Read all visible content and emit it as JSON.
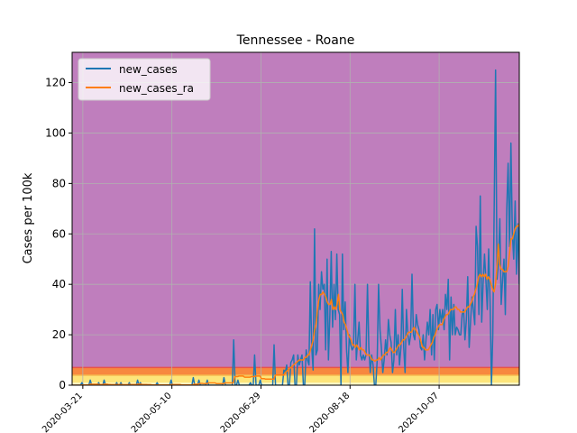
{
  "chart_data": {
    "type": "line",
    "title": "Tennessee - Roane",
    "xlabel": "",
    "ylabel": "Cases per 100k",
    "x_start": "2020-03-15",
    "x_end": "2020-11-21",
    "xlim": [
      "2020-03-15",
      "2020-11-21"
    ],
    "ylim": [
      0,
      132
    ],
    "x_ticks": [
      "2020-03-21",
      "2020-05-10",
      "2020-06-29",
      "2020-08-18",
      "2020-10-07"
    ],
    "y_ticks": [
      0,
      20,
      40,
      60,
      80,
      100,
      120
    ],
    "grid": true,
    "legend_position": "top-left",
    "background_bands": [
      {
        "from": 0,
        "to": 1,
        "color": "#fff8c4"
      },
      {
        "from": 1,
        "to": 4,
        "color": "#fde57a"
      },
      {
        "from": 4,
        "to": 7,
        "color": "#f7883f"
      },
      {
        "from": 7,
        "to": 132,
        "color": "#bf7ebd"
      }
    ],
    "band_edge_lines": [
      {
        "y": 4,
        "color": "#f6b44a"
      },
      {
        "y": 7,
        "color": "#e8534a"
      }
    ],
    "series": [
      {
        "name": "new_cases",
        "color": "#1f77b4",
        "values": [
          0,
          0,
          0,
          0,
          0,
          0,
          0,
          1,
          0,
          0,
          0,
          0,
          0,
          2,
          0,
          0,
          0,
          0,
          0,
          1,
          0,
          0,
          0,
          2,
          0,
          0,
          0,
          0,
          0,
          0,
          0,
          0,
          1,
          0,
          0,
          1,
          0,
          0,
          0,
          0,
          0,
          1,
          0,
          0,
          0,
          0,
          0,
          2,
          0,
          1,
          0,
          0,
          0,
          0,
          0,
          0,
          0,
          0,
          0,
          0,
          0,
          1,
          0,
          0,
          0,
          0,
          0,
          0,
          0,
          0,
          0,
          2,
          0,
          0,
          0,
          0,
          0,
          0,
          0,
          0,
          0,
          0,
          0,
          0,
          0,
          0,
          0,
          3,
          0,
          0,
          0,
          2,
          0,
          0,
          0,
          0,
          0,
          2,
          0,
          0,
          0,
          0,
          0,
          0,
          0,
          0,
          0,
          0,
          0,
          3,
          0,
          0,
          0,
          0,
          0,
          0,
          18,
          0,
          0,
          2,
          0,
          0,
          0,
          0,
          0,
          0,
          0,
          0,
          1,
          0,
          0,
          12,
          0,
          0,
          0,
          2,
          0,
          0,
          0,
          0,
          0,
          0,
          0,
          0,
          0,
          16,
          0,
          0,
          0,
          0,
          0,
          0,
          6,
          5,
          8,
          0,
          0,
          9,
          10,
          12,
          0,
          0,
          12,
          8,
          10,
          12,
          0,
          0,
          14,
          10,
          8,
          41,
          15,
          6,
          62,
          12,
          14,
          40,
          30,
          45,
          38,
          40,
          14,
          50,
          10,
          28,
          53,
          23,
          40,
          26,
          52,
          30,
          28,
          0,
          52,
          22,
          33,
          14,
          5,
          20,
          16,
          14,
          15,
          40,
          10,
          18,
          25,
          12,
          10,
          12,
          10,
          12,
          40,
          15,
          5,
          12,
          8,
          0,
          0,
          10,
          40,
          22,
          15,
          5,
          10,
          18,
          12,
          26,
          20,
          17,
          5,
          10,
          30,
          12,
          20,
          8,
          15,
          38,
          15,
          5,
          30,
          20,
          16,
          20,
          44,
          20,
          18,
          28,
          24,
          22,
          15,
          14,
          20,
          10,
          18,
          25,
          20,
          30,
          12,
          28,
          10,
          30,
          32,
          22,
          30,
          25,
          30,
          22,
          36,
          30,
          42,
          10,
          35,
          20,
          32,
          20,
          23,
          22,
          20,
          20,
          28,
          30,
          18,
          26,
          43,
          15,
          25,
          35,
          30,
          24,
          63,
          55,
          28,
          75,
          25,
          40,
          52,
          42,
          30,
          54,
          33,
          0,
          20,
          72,
          125,
          42,
          48,
          66,
          32,
          42,
          50,
          28,
          70,
          88,
          55,
          96,
          60,
          50,
          73,
          44,
          64,
          40
        ]
      },
      {
        "name": "new_cases_ra",
        "color": "#ff7f0e",
        "values": [
          0,
          0,
          0,
          0,
          0,
          0,
          0,
          0.1,
          0.1,
          0.1,
          0.1,
          0.1,
          0.1,
          0.4,
          0.4,
          0.4,
          0.4,
          0.4,
          0.4,
          0.3,
          0.3,
          0.3,
          0.3,
          0.4,
          0.4,
          0.4,
          0.3,
          0.3,
          0.2,
          0.2,
          0.2,
          0.2,
          0.3,
          0.3,
          0.3,
          0.2,
          0.2,
          0.2,
          0.2,
          0.2,
          0.2,
          0.3,
          0.3,
          0.3,
          0.3,
          0.3,
          0.3,
          0.4,
          0.4,
          0.4,
          0.3,
          0.3,
          0.3,
          0.3,
          0.2,
          0.2,
          0.2,
          0.1,
          0.1,
          0.1,
          0.1,
          0.1,
          0.1,
          0.1,
          0.1,
          0.1,
          0.1,
          0.1,
          0.1,
          0.1,
          0.1,
          0.3,
          0.3,
          0.3,
          0.3,
          0.3,
          0.3,
          0.3,
          0.1,
          0.1,
          0.1,
          0.1,
          0.1,
          0.1,
          0.1,
          0.1,
          0.1,
          0.4,
          0.4,
          0.4,
          0.4,
          0.7,
          0.7,
          0.7,
          0.6,
          0.6,
          0.6,
          0.9,
          0.9,
          0.9,
          0.9,
          0.9,
          0.9,
          0.6,
          0.6,
          0.6,
          0.6,
          0.6,
          0.6,
          0.9,
          0.9,
          0.9,
          0.9,
          0.9,
          0.9,
          0.9,
          3.4,
          3.4,
          3.4,
          3.6,
          3.6,
          3.6,
          3.6,
          3.2,
          3.2,
          3.2,
          3.2,
          3.2,
          3.4,
          3.4,
          3.4,
          3.6,
          3.6,
          3.6,
          3.6,
          2.6,
          2.6,
          2.6,
          2.4,
          2.4,
          2.4,
          2.4,
          2.4,
          2.4,
          2.4,
          4.0,
          4.0,
          4.0,
          4.0,
          4.0,
          4.0,
          4.0,
          5.0,
          5.5,
          6.0,
          6.5,
          7.0,
          7.5,
          8.0,
          8.5,
          9.0,
          9.5,
          10,
          10,
          10,
          10,
          11,
          11,
          12,
          12,
          14,
          16,
          18,
          22,
          24,
          30,
          34,
          36,
          36,
          37,
          36,
          35,
          33,
          32,
          32,
          34,
          30,
          31,
          30,
          32,
          36,
          30,
          29,
          28,
          25,
          24,
          22,
          20,
          19,
          18,
          16,
          16,
          15,
          16,
          15,
          14,
          15,
          14,
          14,
          13,
          12,
          12,
          12,
          11,
          10,
          10,
          9.5,
          10,
          10,
          11,
          10,
          11,
          12,
          12,
          13,
          13,
          14,
          15,
          14,
          13,
          13,
          14,
          15,
          16,
          16,
          17,
          18,
          18,
          19,
          20,
          21,
          21,
          21,
          22,
          23,
          22,
          21,
          20,
          19,
          17,
          15,
          15,
          14,
          14,
          14,
          15,
          16,
          17,
          19,
          20,
          22,
          23,
          24,
          24,
          24,
          26,
          27,
          28,
          28,
          29,
          30,
          30,
          30,
          31,
          31,
          30,
          30,
          29,
          29,
          29,
          29,
          30,
          31,
          31,
          32,
          33,
          35,
          36,
          38,
          40,
          43,
          44,
          43,
          44,
          43,
          44,
          42,
          43,
          42,
          40,
          38,
          37,
          40,
          46,
          56,
          48,
          46,
          46,
          45,
          45,
          45,
          47,
          52,
          58,
          58,
          60,
          62,
          63,
          63,
          64
        ]
      }
    ]
  }
}
